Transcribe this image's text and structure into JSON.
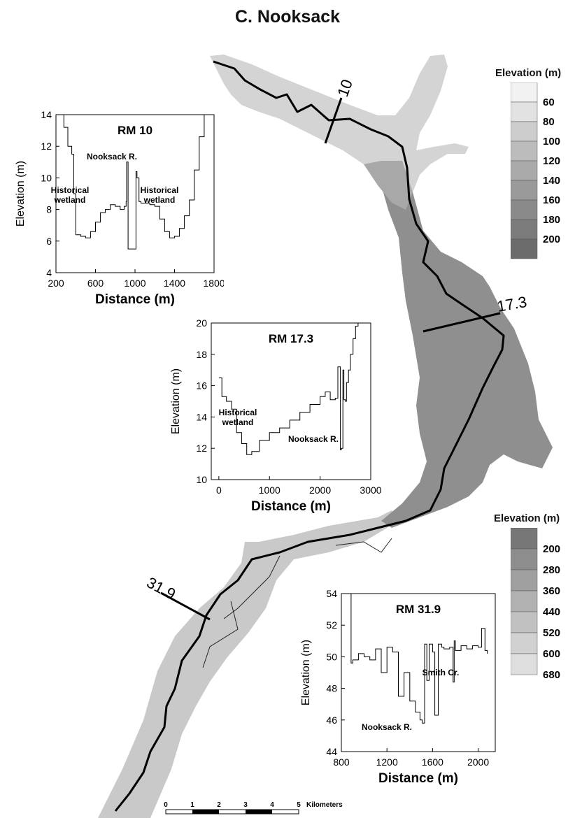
{
  "title": "C. Nooksack",
  "map": {
    "cross_sections": [
      {
        "label": "10"
      },
      {
        "label": "17.3"
      },
      {
        "label": "31.9"
      }
    ],
    "scale_bar": {
      "ticks": [
        "0",
        "1",
        "2",
        "3",
        "4",
        "5"
      ],
      "unit": "Kilometers"
    },
    "colors": {
      "river": "#000000",
      "valley_light": "#d6d6d6",
      "valley_mid": "#9c9c9c",
      "valley_dark": "#888888"
    }
  },
  "legends": [
    {
      "title": "Elevation (m)",
      "labels": [
        "60",
        "80",
        "100",
        "120",
        "140",
        "160",
        "180",
        "200"
      ],
      "swatches": [
        "#f2f2f2",
        "#e2e2e2",
        "#cdcdcd",
        "#bcbcbc",
        "#aaaaaa",
        "#9a9a9a",
        "#8a8a8a",
        "#7b7b7b",
        "#6c6c6c"
      ]
    },
    {
      "title": "Elevation (m)",
      "labels": [
        "200",
        "280",
        "360",
        "440",
        "520",
        "600",
        "680"
      ],
      "swatches": [
        "#777777",
        "#8d8d8d",
        "#a0a0a0",
        "#b1b1b1",
        "#c1c1c1",
        "#d1d1d1",
        "#dedede"
      ]
    }
  ],
  "chart_data": [
    {
      "type": "line",
      "title": "RM 10",
      "xlabel": "Distance (m)",
      "ylabel": "Elevation (m)",
      "xlim": [
        200,
        1800
      ],
      "ylim": [
        4,
        14
      ],
      "xticks": [
        "200",
        "600",
        "1000",
        "1400",
        "1800"
      ],
      "yticks": [
        "4",
        "6",
        "8",
        "10",
        "12",
        "14"
      ],
      "annotations": [
        "Nooksack R.",
        "Historical wetland",
        "Historical wetland"
      ],
      "x": [
        240,
        280,
        320,
        360,
        380,
        400,
        450,
        500,
        550,
        600,
        650,
        700,
        750,
        800,
        850,
        890,
        910,
        915,
        930,
        960,
        980,
        1000,
        1010,
        1020,
        1040,
        1060,
        1100,
        1150,
        1200,
        1250,
        1300,
        1350,
        1400,
        1450,
        1500,
        1550,
        1600,
        1650,
        1700
      ],
      "y": [
        14,
        13.2,
        12,
        11.5,
        9,
        6.4,
        6.3,
        6.2,
        6.6,
        7.2,
        7.8,
        8.0,
        8.3,
        8.2,
        8.0,
        8.2,
        8.5,
        11.0,
        5.5,
        5.5,
        5.5,
        5.5,
        10.4,
        10.0,
        8.5,
        8.4,
        8.4,
        8.3,
        8.2,
        7.4,
        6.6,
        6.2,
        6.3,
        6.8,
        7.6,
        8.6,
        10.5,
        12.6,
        14
      ]
    },
    {
      "type": "line",
      "title": "RM 17.3",
      "xlabel": "Distance (m)",
      "ylabel": "Elevation (m)",
      "xlim": [
        -150,
        3000
      ],
      "ylim": [
        10,
        20
      ],
      "xticks": [
        "0",
        "1000",
        "2000",
        "3000"
      ],
      "yticks": [
        "10",
        "12",
        "14",
        "16",
        "18",
        "20"
      ],
      "annotations": [
        "Historical wetland",
        "Nooksack R."
      ],
      "x": [
        0,
        60,
        150,
        250,
        350,
        450,
        550,
        650,
        800,
        1000,
        1200,
        1400,
        1600,
        1800,
        2000,
        2100,
        2200,
        2300,
        2350,
        2400,
        2420,
        2450,
        2470,
        2500,
        2520,
        2560,
        2600,
        2650,
        2700,
        2750
      ],
      "y": [
        16.5,
        15.3,
        15.0,
        14.5,
        13.0,
        12.3,
        11.6,
        11.8,
        12.5,
        13.0,
        13.3,
        13.8,
        14.3,
        14.8,
        15.3,
        15.6,
        15.1,
        15.2,
        17.2,
        11.9,
        12.0,
        17.0,
        15.1,
        15.0,
        16.2,
        17.0,
        18.0,
        19.0,
        19.8,
        20
      ]
    },
    {
      "type": "line",
      "title": "RM 31.9",
      "xlabel": "Distance (m)",
      "ylabel": "Elevation (m)",
      "xlim": [
        800,
        2150
      ],
      "ylim": [
        44,
        54
      ],
      "xticks": [
        "800",
        "1200",
        "1600",
        "2000"
      ],
      "yticks": [
        "44",
        "46",
        "48",
        "50",
        "52",
        "54"
      ],
      "annotations": [
        "Smith Cr.",
        "Nooksack R."
      ],
      "x": [
        880,
        885,
        900,
        950,
        1000,
        1050,
        1100,
        1150,
        1200,
        1250,
        1300,
        1350,
        1400,
        1450,
        1490,
        1510,
        1530,
        1550,
        1570,
        1600,
        1620,
        1650,
        1680,
        1700,
        1750,
        1780,
        1790,
        1800,
        1850,
        1900,
        1950,
        2000,
        2030,
        2060,
        2080
      ],
      "y": [
        54,
        49.6,
        49.8,
        50.2,
        50.0,
        49.8,
        50.5,
        49.0,
        50.6,
        50.3,
        47.5,
        49.0,
        47.2,
        46.5,
        46.0,
        45.8,
        50.8,
        48.5,
        50.8,
        50.3,
        46.3,
        50.8,
        50.6,
        50.5,
        50.6,
        48.4,
        51.0,
        50.4,
        50.7,
        50.5,
        50.7,
        50.6,
        51.8,
        50.4,
        50.2
      ]
    }
  ]
}
